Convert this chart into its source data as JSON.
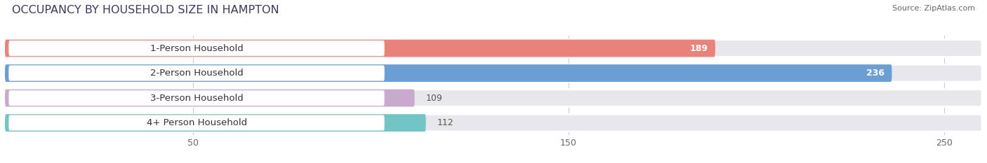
{
  "title": "OCCUPANCY BY HOUSEHOLD SIZE IN HAMPTON",
  "source": "Source: ZipAtlas.com",
  "categories": [
    "1-Person Household",
    "2-Person Household",
    "3-Person Household",
    "4+ Person Household"
  ],
  "values": [
    189,
    236,
    109,
    112
  ],
  "bar_colors": [
    "#E8827A",
    "#6B9FD4",
    "#C8AACF",
    "#72C5C5"
  ],
  "label_colors": [
    "white",
    "white",
    "#666666",
    "#666666"
  ],
  "background_color": "#ffffff",
  "bar_bg_color": "#e8e8ec",
  "title_bg_color": "#ffffff",
  "xlim": [
    0,
    260
  ],
  "xticks": [
    50,
    150,
    250
  ],
  "title_fontsize": 11.5,
  "label_fontsize": 9.5,
  "value_fontsize": 9
}
